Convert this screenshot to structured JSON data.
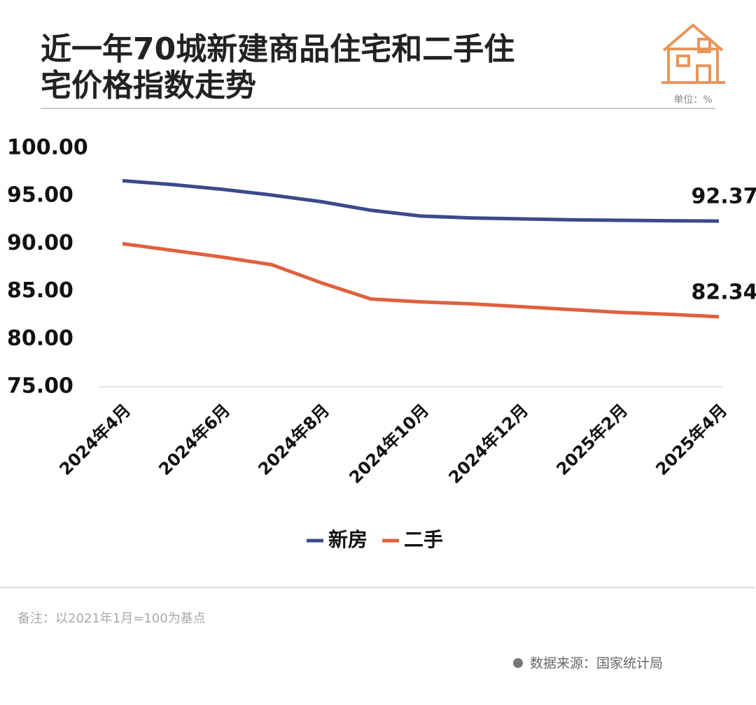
{
  "chart_data": {
    "type": "line",
    "title": [
      "近一年70城新建商品住宅和二手住",
      "宅价格指数走势"
    ],
    "unit": "单位：%",
    "note": "备注：以2021年1月=100为基点",
    "source": "数据来源：国家统计局",
    "categories": [
      "2024年4月",
      null,
      "2024年6月",
      null,
      "2024年8月",
      null,
      "2024年10月",
      null,
      "2024年12月",
      null,
      "2025年2月",
      null,
      "2025年4月"
    ],
    "series": [
      {
        "name": "新房",
        "color": "#3b4a8c",
        "values": [
          96.6,
          96.2,
          95.7,
          95.1,
          94.4,
          93.5,
          92.9,
          92.7,
          92.6,
          92.5,
          92.45,
          92.4,
          92.37
        ]
      },
      {
        "name": "二手",
        "color": "#e0603e",
        "values": [
          90.0,
          89.3,
          88.6,
          87.8,
          85.9,
          84.2,
          83.9,
          83.7,
          83.4,
          83.1,
          82.8,
          82.6,
          82.34
        ]
      }
    ],
    "ylim": [
      75,
      100
    ],
    "yticks": [
      {
        "value": 75,
        "label": "75.00"
      },
      {
        "value": 80,
        "label": "80.00"
      },
      {
        "value": 85,
        "label": "85.00"
      },
      {
        "value": 90,
        "label": "90.00"
      },
      {
        "value": 95,
        "label": "95.00"
      },
      {
        "value": 100,
        "label": "100.00"
      }
    ]
  }
}
